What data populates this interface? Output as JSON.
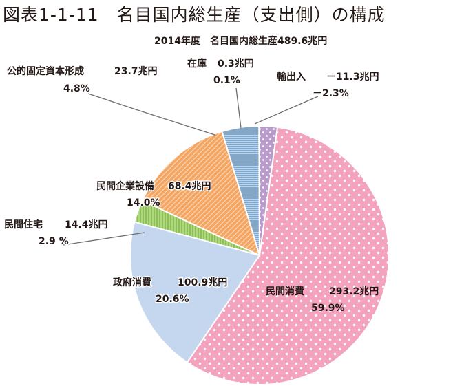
{
  "title": "図表1-1-11　名目国内総生産（支出側）の構成",
  "chart_data": {
    "type": "pie",
    "title": "図表1-1-11　名目国内総生産（支出側）の構成",
    "subtitle": "2014年度　名目国内総生産489.6兆円",
    "total": "489.6兆円",
    "slices": [
      {
        "label": "民間消費",
        "value": 293.2,
        "value_text": "293.2兆円",
        "percent": 59.9,
        "percent_text": "59.9%",
        "color": "#f4a3be",
        "pattern": "dots"
      },
      {
        "label": "政府消費",
        "value": 100.9,
        "value_text": "100.9兆円",
        "percent": 20.6,
        "percent_text": "20.6%",
        "color": "#c5d7ee",
        "pattern": "solid"
      },
      {
        "label": "民間住宅",
        "value": 14.4,
        "value_text": "14.4兆円",
        "percent": 2.9,
        "percent_text": "2.9 %",
        "color": "#8cc152",
        "pattern": "vertical-lines"
      },
      {
        "label": "民間企業設備",
        "value": 68.4,
        "value_text": "68.4兆円",
        "percent": 14.0,
        "percent_text": "14.0%",
        "color": "#f4a562",
        "pattern": "diagonal-lines"
      },
      {
        "label": "公的固定資本形成",
        "value": 23.7,
        "value_text": "23.7兆円",
        "percent": 4.8,
        "percent_text": "4.8%",
        "color": "#7fa8cc",
        "pattern": "horizontal-lines"
      },
      {
        "label": "在庫",
        "value": 0.3,
        "value_text": "0.3兆円",
        "percent": 0.1,
        "percent_text": "0.1%",
        "color": "#8fb3d6",
        "pattern": "solid"
      },
      {
        "label": "輸出入",
        "value": -11.3,
        "value_text": "－11.3兆円",
        "percent": -2.3,
        "percent_text": "－2.3%",
        "color": "#b89acb",
        "pattern": "dots"
      }
    ]
  }
}
